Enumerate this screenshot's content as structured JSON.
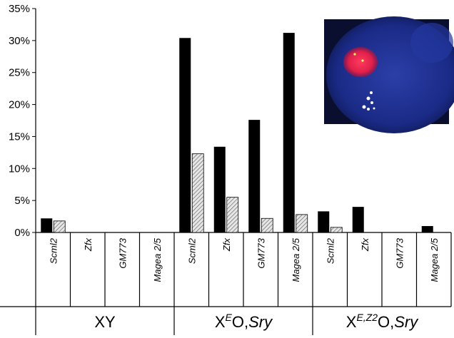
{
  "chart_data": {
    "type": "bar",
    "ylim": [
      0,
      35
    ],
    "yticks": [
      0,
      5,
      10,
      15,
      20,
      25,
      30,
      35
    ],
    "ytick_suffix": "%",
    "grid": false,
    "categories": [
      "Scml2",
      "Zfx",
      "GM773",
      "Magea 2/5",
      "Scml2",
      "Zfx",
      "GM773",
      "Magea 2/5",
      "Scml2",
      "Zfx",
      "GM773",
      "Magea 2/5"
    ],
    "groups": [
      {
        "label_base": "XY",
        "label_sup": "",
        "label_tail": "",
        "span": [
          0,
          4
        ]
      },
      {
        "label_base": "X",
        "label_sup": "E",
        "label_tail": "O,",
        "label_italic": "Sry",
        "span": [
          4,
          8
        ]
      },
      {
        "label_base": "X",
        "label_sup": "E,Z2",
        "label_tail": "O,",
        "label_italic": "Sry",
        "span": [
          8,
          12
        ]
      }
    ],
    "series": [
      {
        "style": "solid",
        "color": "#000000",
        "values": [
          2.2,
          0,
          0,
          0,
          30.4,
          13.4,
          17.6,
          31.2,
          3.3,
          4.0,
          0,
          1.0
        ]
      },
      {
        "style": "hatched",
        "color": "#bfbfbf",
        "values": [
          1.8,
          0,
          0,
          0,
          12.3,
          5.5,
          2.2,
          2.8,
          0.8,
          0,
          0,
          0
        ]
      }
    ],
    "inset": {
      "description_icon": "fluorescence-micrograph-icon"
    }
  }
}
